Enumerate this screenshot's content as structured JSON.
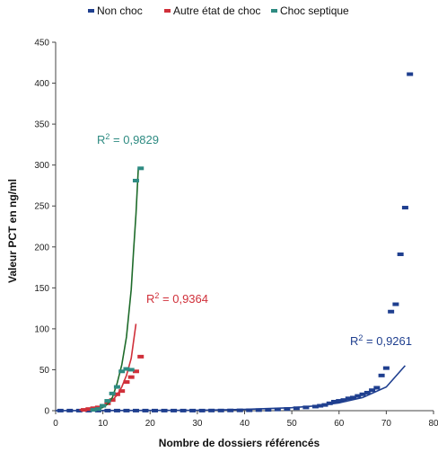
{
  "chart_data": {
    "type": "scatter",
    "xlabel": "Nombre de dossiers référencés",
    "ylabel": "Valeur PCT en ng/ml",
    "xlim": [
      0,
      80
    ],
    "ylim": [
      0,
      450
    ],
    "x_ticks": [
      0,
      10,
      20,
      30,
      40,
      50,
      60,
      70,
      80
    ],
    "y_ticks": [
      0,
      50,
      100,
      150,
      200,
      250,
      300,
      350,
      400,
      450
    ],
    "grid": false,
    "legend_position": "top",
    "series": [
      {
        "name": "Non choc",
        "color": "#1f3f8f",
        "points": [
          [
            1,
            0.1
          ],
          [
            3,
            0.1
          ],
          [
            5,
            0.1
          ],
          [
            7,
            0.1
          ],
          [
            9,
            0.1
          ],
          [
            11,
            0.1
          ],
          [
            13,
            0.1
          ],
          [
            15,
            0.1
          ],
          [
            17,
            0.1
          ],
          [
            19,
            0.1
          ],
          [
            21,
            0.1
          ],
          [
            23,
            0.1
          ],
          [
            25,
            0.1
          ],
          [
            27,
            0.1
          ],
          [
            29,
            0.1
          ],
          [
            31,
            0.1
          ],
          [
            33,
            0.2
          ],
          [
            35,
            0.2
          ],
          [
            37,
            0.3
          ],
          [
            39,
            0.4
          ],
          [
            41,
            0.5
          ],
          [
            43,
            0.7
          ],
          [
            45,
            1
          ],
          [
            47,
            1.5
          ],
          [
            49,
            2
          ],
          [
            51,
            3
          ],
          [
            53,
            4
          ],
          [
            55,
            5
          ],
          [
            56,
            6
          ],
          [
            57,
            7
          ],
          [
            58,
            9
          ],
          [
            59,
            11
          ],
          [
            60,
            12
          ],
          [
            61,
            13
          ],
          [
            62,
            15
          ],
          [
            63,
            16
          ],
          [
            64,
            18
          ],
          [
            65,
            20
          ],
          [
            66,
            22
          ],
          [
            67,
            25
          ],
          [
            68,
            28
          ],
          [
            69,
            43
          ],
          [
            70,
            52
          ],
          [
            71,
            121
          ],
          [
            72,
            130
          ],
          [
            73,
            191
          ],
          [
            74,
            248
          ],
          [
            75,
            411
          ]
        ],
        "r2_label": "R² = 0,9261",
        "trend_points": [
          [
            0,
            0.1
          ],
          [
            10,
            0.2
          ],
          [
            20,
            0.3
          ],
          [
            30,
            0.6
          ],
          [
            40,
            1.5
          ],
          [
            50,
            3.6
          ],
          [
            55,
            5.8
          ],
          [
            60,
            9.5
          ],
          [
            65,
            16
          ],
          [
            70,
            29
          ],
          [
            74,
            55
          ]
        ]
      },
      {
        "name": "Autre état de choc",
        "color": "#d0303a",
        "points": [
          [
            6,
            1
          ],
          [
            7,
            2
          ],
          [
            8,
            3
          ],
          [
            9,
            4
          ],
          [
            10,
            6
          ],
          [
            11,
            9
          ],
          [
            12,
            13
          ],
          [
            13,
            20
          ],
          [
            14,
            24
          ],
          [
            15,
            35
          ],
          [
            16,
            41
          ],
          [
            17,
            48
          ],
          [
            18,
            66
          ]
        ],
        "r2_label": "R² = 0,9364",
        "trend_points": [
          [
            5,
            1
          ],
          [
            7,
            2
          ],
          [
            9,
            4
          ],
          [
            10,
            6
          ],
          [
            11,
            9
          ],
          [
            12,
            13
          ],
          [
            13,
            19
          ],
          [
            14,
            29
          ],
          [
            15,
            43
          ],
          [
            16,
            64
          ],
          [
            17,
            106
          ]
        ]
      },
      {
        "name": "Choc septique",
        "color": "#2e8b82",
        "points": [
          [
            8,
            1
          ],
          [
            9,
            2
          ],
          [
            10,
            6
          ],
          [
            11,
            12
          ],
          [
            12,
            21
          ],
          [
            13,
            29
          ],
          [
            14,
            48
          ],
          [
            15,
            51
          ],
          [
            16,
            50
          ],
          [
            17,
            281
          ],
          [
            18,
            296
          ]
        ],
        "r2_label": "R² = 0,9829",
        "trend_points": [
          [
            8,
            1
          ],
          [
            9,
            2
          ],
          [
            10,
            4
          ],
          [
            11,
            8
          ],
          [
            12,
            16
          ],
          [
            13,
            33
          ],
          [
            14,
            56
          ],
          [
            15,
            90
          ],
          [
            16,
            148
          ],
          [
            16.5,
            195
          ],
          [
            17,
            240
          ],
          [
            17.5,
            296
          ]
        ]
      }
    ]
  }
}
